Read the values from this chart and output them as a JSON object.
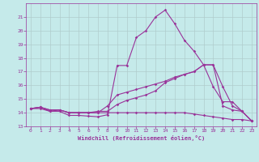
{
  "xlabel": "Windchill (Refroidissement éolien,°C)",
  "xlim": [
    -0.5,
    23.5
  ],
  "ylim": [
    13,
    22
  ],
  "yticks": [
    13,
    14,
    15,
    16,
    17,
    18,
    19,
    20,
    21
  ],
  "xticks": [
    0,
    1,
    2,
    3,
    4,
    5,
    6,
    7,
    8,
    9,
    10,
    11,
    12,
    13,
    14,
    15,
    16,
    17,
    18,
    19,
    20,
    21,
    22,
    23
  ],
  "background_color": "#c5eaea",
  "line_color": "#993399",
  "grid_color": "#b0cccc",
  "lines": [
    [
      14.3,
      14.4,
      14.1,
      14.1,
      13.8,
      13.8,
      13.75,
      13.7,
      13.85,
      17.45,
      17.45,
      19.5,
      20.0,
      21.0,
      21.5,
      20.5,
      19.3,
      18.5,
      17.5,
      15.9,
      14.8,
      14.8,
      14.1,
      13.4
    ],
    [
      14.3,
      14.3,
      14.1,
      14.2,
      14.0,
      14.0,
      14.0,
      14.0,
      14.0,
      14.0,
      14.0,
      14.0,
      14.0,
      14.0,
      14.0,
      14.0,
      14.0,
      13.9,
      13.8,
      13.7,
      13.6,
      13.5,
      13.5,
      13.4
    ],
    [
      14.3,
      14.4,
      14.2,
      14.2,
      14.0,
      14.0,
      14.0,
      14.1,
      14.1,
      14.6,
      14.9,
      15.1,
      15.3,
      15.6,
      16.2,
      16.5,
      16.8,
      17.0,
      17.5,
      17.5,
      15.9,
      14.5,
      14.1,
      13.4
    ],
    [
      14.3,
      14.4,
      14.2,
      14.2,
      14.0,
      14.0,
      14.0,
      14.0,
      14.5,
      15.3,
      15.5,
      15.7,
      15.9,
      16.1,
      16.3,
      16.6,
      16.8,
      17.0,
      17.5,
      17.5,
      14.5,
      14.2,
      14.1,
      13.4
    ]
  ]
}
